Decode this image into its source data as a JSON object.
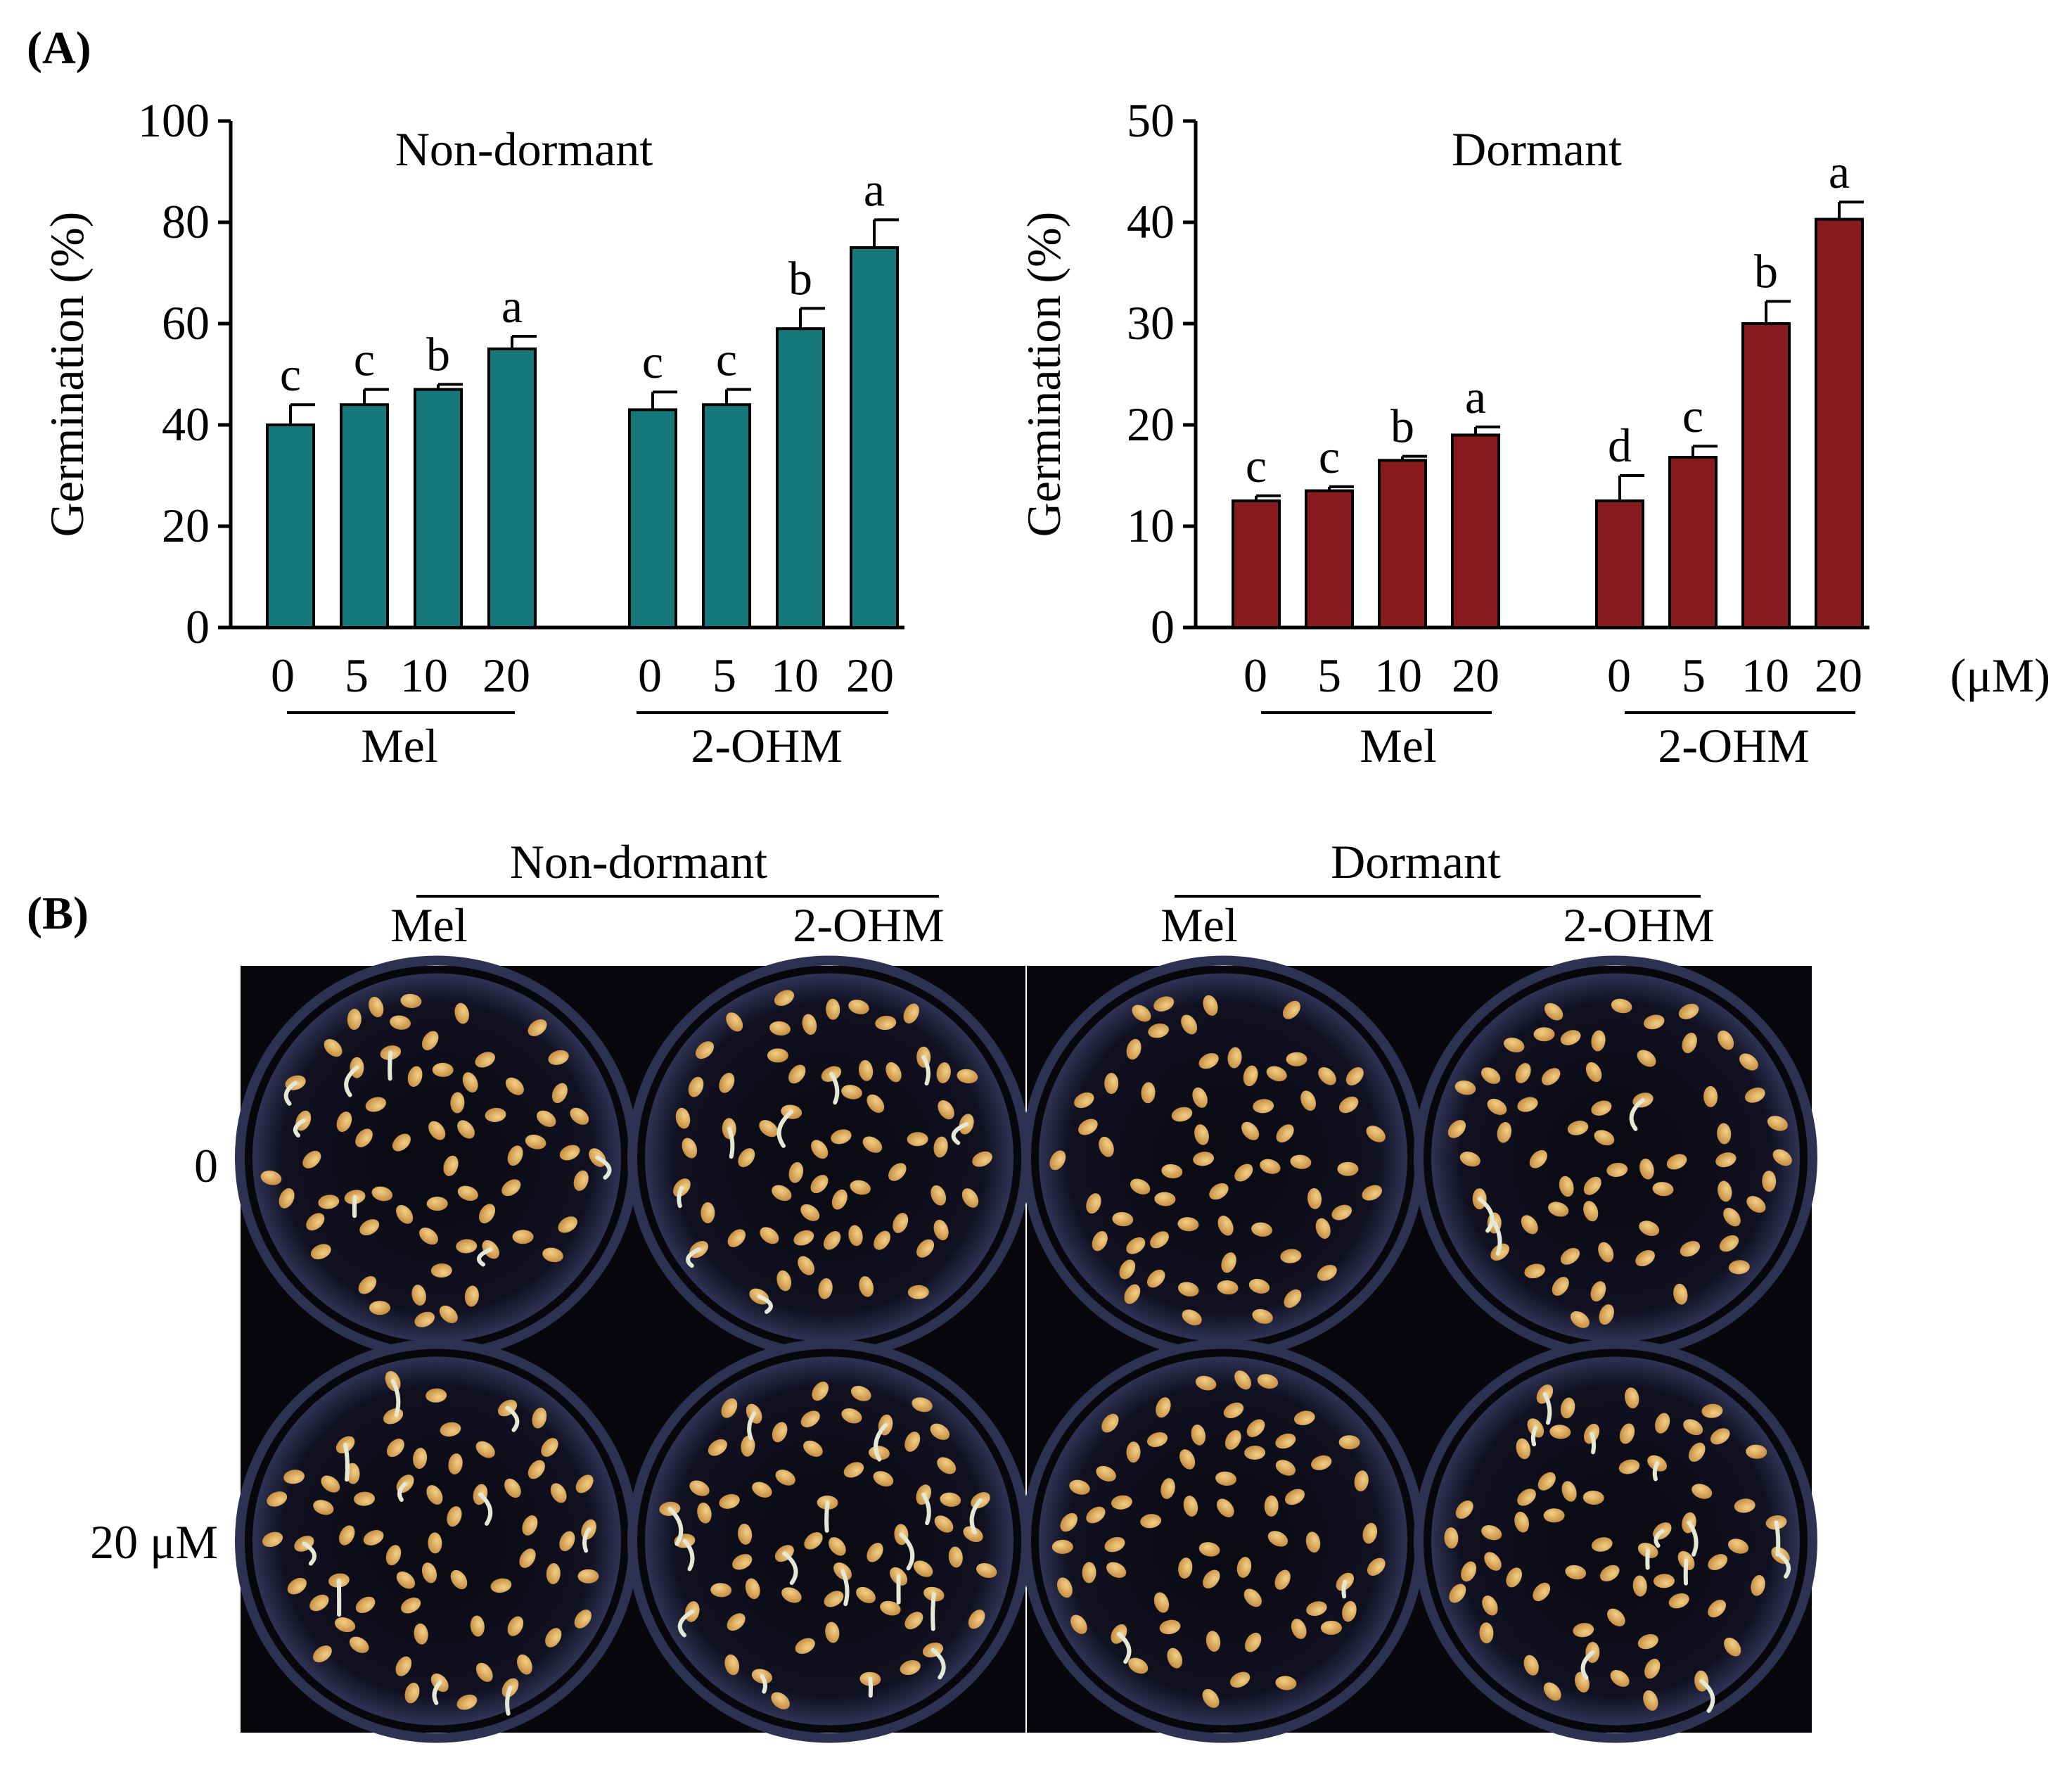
{
  "panel_a_label": "(A)",
  "panel_b_label": "(B)",
  "unit_label": "(μM)",
  "colors": {
    "non_dormant": "#16787A",
    "dormant": "#861A1C"
  },
  "chart_data": [
    {
      "type": "bar",
      "title": "Non-dormant",
      "ylabel": "Germination (%)",
      "xlabel": "",
      "ylim": [
        0,
        100
      ],
      "yticks": [
        "0",
        "20",
        "40",
        "60",
        "80",
        "100"
      ],
      "tick_labels": [
        "0",
        "5",
        "10",
        "20",
        "0",
        "5",
        "10",
        "20"
      ],
      "groups": [
        "Mel",
        "2-OHM"
      ],
      "categories": [
        "Mel 0",
        "Mel 5",
        "Mel 10",
        "Mel 20",
        "2-OHM 0",
        "2-OHM 5",
        "2-OHM 10",
        "2-OHM 20"
      ],
      "values": [
        40,
        44,
        47,
        55,
        43,
        44,
        59,
        75
      ],
      "errors": [
        4,
        3,
        1,
        2.5,
        3.5,
        3,
        4,
        5.5
      ],
      "letters": [
        "c",
        "c",
        "b",
        "a",
        "c",
        "c",
        "b",
        "a"
      ]
    },
    {
      "type": "bar",
      "title": "Dormant",
      "ylabel": "Germination (%)",
      "xlabel": "",
      "ylim": [
        0,
        50
      ],
      "yticks": [
        "0",
        "10",
        "20",
        "30",
        "40",
        "50"
      ],
      "tick_labels": [
        "0",
        "5",
        "10",
        "20",
        "0",
        "5",
        "10",
        "20"
      ],
      "groups": [
        "Mel",
        "2-OHM"
      ],
      "categories": [
        "Mel 0",
        "Mel 5",
        "Mel 10",
        "Mel 20",
        "2-OHM 0",
        "2-OHM 5",
        "2-OHM 10",
        "2-OHM 20"
      ],
      "values": [
        12.5,
        13.5,
        16.5,
        19,
        12.5,
        16.8,
        30,
        40.3
      ],
      "errors": [
        0.5,
        0.4,
        0.4,
        0.8,
        2.5,
        1.1,
        2.2,
        1.7
      ],
      "letters": [
        "c",
        "c",
        "b",
        "a",
        "d",
        "c",
        "b",
        "a"
      ]
    }
  ],
  "photos": {
    "condition_headers": [
      "Non-dormant",
      "Dormant"
    ],
    "column_labels": [
      "Mel",
      "2-OHM",
      "Mel",
      "2-OHM"
    ],
    "row_labels": [
      "0",
      "20 μM"
    ]
  }
}
